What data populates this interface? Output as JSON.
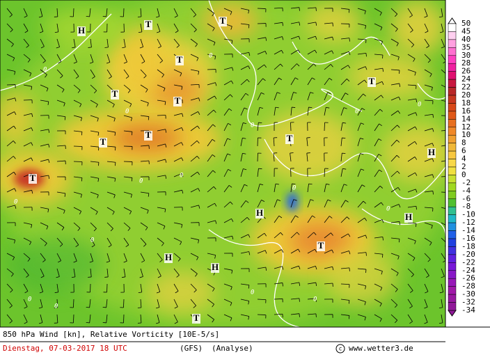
{
  "map": {
    "pressure_labels": [
      "H",
      "T",
      "T",
      "T",
      "T",
      "T",
      "T",
      "T",
      "T",
      "T",
      "H",
      "T",
      "H",
      "H",
      "T",
      "H",
      "H",
      "T"
    ],
    "contour_labels": [
      "0",
      "0",
      "0",
      "0",
      "0",
      "0",
      "0",
      "0",
      "0",
      "0",
      "0",
      "0",
      "0",
      "0",
      "0",
      "0"
    ],
    "colorbar": {
      "labels": [
        "50",
        "45",
        "40",
        "35",
        "30",
        "28",
        "26",
        "24",
        "22",
        "20",
        "18",
        "16",
        "14",
        "12",
        "10",
        "8",
        "6",
        "4",
        "2",
        "0",
        "-2",
        "-4",
        "-6",
        "-8",
        "-10",
        "-12",
        "-14",
        "-16",
        "-18",
        "-20",
        "-22",
        "-24",
        "-26",
        "-28",
        "-30",
        "-32",
        "-34"
      ],
      "colors": [
        "#ffffff",
        "#ffd0f0",
        "#ffa0e0",
        "#ff70d0",
        "#ff40c0",
        "#f020a0",
        "#e01070",
        "#c81840",
        "#b82828",
        "#c83820",
        "#d84818",
        "#e05818",
        "#e87020",
        "#f08828",
        "#f0a030",
        "#f0b838",
        "#f8c840",
        "#f8d848",
        "#f0e040",
        "#c8e030",
        "#a0d820",
        "#80cc20",
        "#50c030",
        "#30c090",
        "#20b8c8",
        "#2090e0",
        "#2060e8",
        "#2040e0",
        "#4030e0",
        "#6020e0",
        "#7818d8",
        "#8818c8",
        "#9818b8",
        "#a018a8",
        "#9818a0",
        "#901898"
      ],
      "top_color": "#ffffff",
      "bottom_color": "#901898"
    }
  },
  "footer": {
    "title": "850 hPa Wind [kn], Relative Vorticity [10E-5/s]",
    "date": "Dienstag, 07-03-2017  18 UTC",
    "model": "(GFS)",
    "run": "(Analyse)",
    "site": "www.wetter3.de"
  }
}
